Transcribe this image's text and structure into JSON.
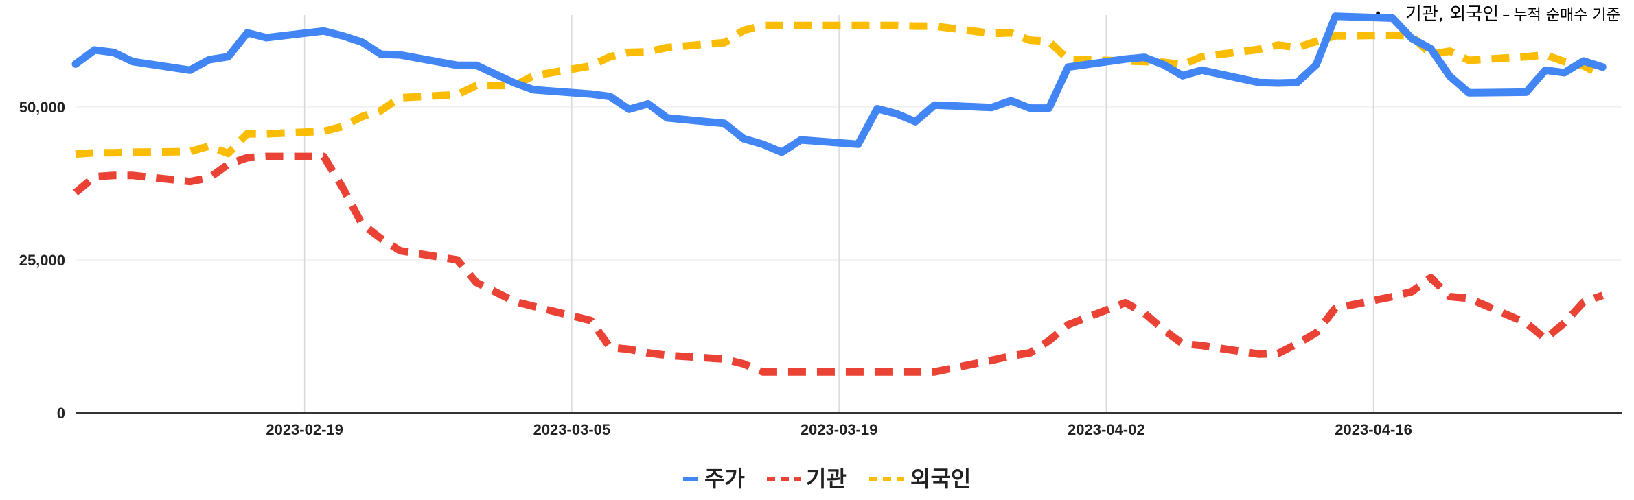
{
  "annotation": {
    "bullet": "•",
    "strong": "기관, 외국인",
    "separator": "–",
    "rest": "누적 순매수 기준"
  },
  "chart_data": {
    "type": "line",
    "title": "",
    "xlabel": "",
    "ylabel": "",
    "ylim": [
      0,
      65000
    ],
    "xlim": [
      "2023-02-07",
      "2023-04-29"
    ],
    "yticks": [
      0,
      25000,
      50000
    ],
    "ytick_labels": [
      "0",
      "25,000",
      "50,000"
    ],
    "xticks": [
      "2023-02-19",
      "2023-03-05",
      "2023-03-19",
      "2023-04-02",
      "2023-04-16"
    ],
    "grid": true,
    "legend_position": "bottom",
    "x": [
      "2023-02-07",
      "2023-02-08",
      "2023-02-09",
      "2023-02-10",
      "2023-02-13",
      "2023-02-14",
      "2023-02-15",
      "2023-02-16",
      "2023-02-17",
      "2023-02-20",
      "2023-02-21",
      "2023-02-22",
      "2023-02-23",
      "2023-02-24",
      "2023-02-27",
      "2023-02-28",
      "2023-03-02",
      "2023-03-03",
      "2023-03-06",
      "2023-03-07",
      "2023-03-08",
      "2023-03-09",
      "2023-03-10",
      "2023-03-13",
      "2023-03-14",
      "2023-03-15",
      "2023-03-16",
      "2023-03-17",
      "2023-03-20",
      "2023-03-21",
      "2023-03-22",
      "2023-03-23",
      "2023-03-24",
      "2023-03-27",
      "2023-03-28",
      "2023-03-29",
      "2023-03-30",
      "2023-03-31",
      "2023-04-03",
      "2023-04-04",
      "2023-04-05",
      "2023-04-06",
      "2023-04-07",
      "2023-04-10",
      "2023-04-11",
      "2023-04-12",
      "2023-04-13",
      "2023-04-14",
      "2023-04-17",
      "2023-04-18",
      "2023-04-19",
      "2023-04-20",
      "2023-04-21",
      "2023-04-24",
      "2023-04-25",
      "2023-04-26",
      "2023-04-27",
      "2023-04-28"
    ],
    "series": [
      {
        "name": "주가",
        "color": "#4285f4",
        "style": "solid",
        "values": [
          57000,
          59300,
          58900,
          57400,
          56000,
          57700,
          58200,
          62100,
          61300,
          62400,
          61600,
          60600,
          58600,
          58500,
          56800,
          56800,
          53900,
          52800,
          52100,
          51700,
          49600,
          50500,
          48200,
          47300,
          44800,
          43900,
          42600,
          44600,
          43900,
          49700,
          48900,
          47600,
          50300,
          49900,
          51000,
          49800,
          49800,
          56500,
          57800,
          58100,
          56900,
          55100,
          56000,
          54000,
          53900,
          54000,
          56900,
          64800,
          64500,
          61200,
          59500,
          55000,
          52300,
          52400,
          56000,
          55600,
          57500,
          56500
        ]
      },
      {
        "name": "기관",
        "color": "#ea4335",
        "style": "dashed",
        "values": [
          36000,
          38600,
          38800,
          38800,
          37800,
          38400,
          40600,
          41700,
          41900,
          41900,
          36800,
          30900,
          28500,
          26500,
          25000,
          21300,
          18200,
          17400,
          15100,
          10700,
          10400,
          9800,
          9400,
          8800,
          8000,
          6700,
          6700,
          6700,
          6700,
          6700,
          6700,
          6700,
          6700,
          8600,
          9300,
          9800,
          11800,
          14400,
          18000,
          16300,
          13600,
          11300,
          11000,
          9600,
          9700,
          11300,
          13100,
          17100,
          19000,
          19800,
          22100,
          19000,
          18700,
          14700,
          12100,
          14700,
          18100,
          19200
        ]
      },
      {
        "name": "외국인",
        "color": "#fbbc04",
        "style": "dashed",
        "values": [
          42300,
          42500,
          42500,
          42600,
          42700,
          43600,
          42400,
          45600,
          45600,
          46000,
          46800,
          48400,
          49400,
          51500,
          52000,
          53500,
          53500,
          55100,
          56700,
          58200,
          58900,
          59000,
          59700,
          60500,
          62500,
          63300,
          63300,
          63300,
          63300,
          63300,
          63300,
          63200,
          63200,
          62000,
          62100,
          60900,
          60700,
          57800,
          57500,
          57400,
          57300,
          56900,
          58200,
          59400,
          60100,
          59700,
          60700,
          61600,
          61700,
          61600,
          58600,
          59100,
          57600,
          58200,
          58500,
          57400,
          56700,
          55100
        ]
      }
    ]
  }
}
